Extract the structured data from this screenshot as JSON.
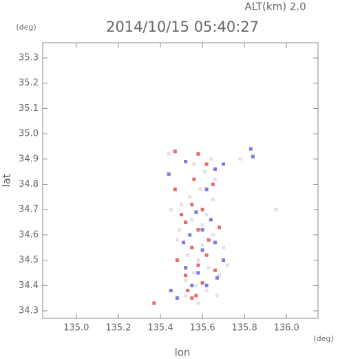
{
  "chart_data": {
    "type": "scatter",
    "title": "2014/10/15 05:40:27",
    "annotation": "ALT(km) 2.0",
    "y_unit": "(deg)",
    "x_unit": "(deg)",
    "xlabel": "lon",
    "ylabel": "lat",
    "xlim": [
      134.84,
      136.15
    ],
    "ylim": [
      34.27,
      35.36
    ],
    "xticks": [
      {
        "value": 135.0,
        "label": "135.0"
      },
      135.2,
      135.4,
      135.6,
      135.8,
      {
        "value": 136.0,
        "label": "136.0"
      }
    ],
    "yticks": [
      34.3,
      34.4,
      34.5,
      34.6,
      34.7,
      34.8,
      34.9,
      {
        "value": 35.0,
        "label": "35.0"
      },
      35.1,
      35.2,
      35.3
    ],
    "series": [
      {
        "color": "#eadde6",
        "x": [
          135.45,
          135.5,
          135.55,
          135.6,
          135.65,
          135.7,
          135.48,
          135.53,
          135.58,
          135.63,
          135.68,
          135.52,
          135.57,
          135.62,
          135.67,
          135.56,
          135.61,
          135.66,
          135.59,
          135.64,
          135.54,
          135.49,
          135.72,
          135.6,
          135.58,
          135.62,
          135.56,
          135.52,
          135.44,
          135.78,
          135.95,
          135.65
        ],
        "y": [
          34.7,
          34.72,
          34.66,
          34.64,
          34.6,
          34.55,
          34.58,
          34.52,
          34.5,
          34.47,
          34.44,
          34.42,
          34.4,
          34.38,
          34.36,
          34.88,
          34.85,
          34.82,
          34.78,
          34.9,
          34.75,
          34.62,
          34.48,
          34.56,
          34.33,
          34.68,
          34.45,
          34.36,
          34.92,
          34.9,
          34.7,
          34.74
        ]
      },
      {
        "color": "#e86a6a",
        "x": [
          135.37,
          135.55,
          135.57,
          135.47,
          135.58,
          135.62,
          135.56,
          135.55,
          135.6,
          135.52,
          135.58,
          135.63,
          135.55,
          135.62,
          135.58,
          135.66,
          135.52,
          135.6,
          135.53,
          135.68,
          135.5,
          135.47,
          135.65,
          135.48
        ],
        "y": [
          34.33,
          34.35,
          34.36,
          34.93,
          34.92,
          34.88,
          34.82,
          34.72,
          34.7,
          34.65,
          34.62,
          34.58,
          34.55,
          34.52,
          34.48,
          34.46,
          34.44,
          34.41,
          34.38,
          34.63,
          34.68,
          34.78,
          34.8,
          34.5
        ]
      },
      {
        "color": "#7a7ae6",
        "x": [
          135.83,
          135.84,
          135.7,
          135.66,
          135.52,
          135.62,
          135.57,
          135.64,
          135.54,
          135.66,
          135.6,
          135.52,
          135.58,
          135.67,
          135.55,
          135.45,
          135.48,
          135.62,
          135.7,
          135.6,
          135.44,
          135.51
        ],
        "y": [
          34.94,
          34.91,
          34.88,
          34.86,
          34.89,
          34.78,
          34.69,
          34.66,
          34.6,
          34.57,
          34.54,
          34.47,
          34.45,
          34.43,
          34.4,
          34.38,
          34.35,
          34.4,
          34.5,
          34.62,
          34.84,
          34.57
        ]
      }
    ]
  }
}
